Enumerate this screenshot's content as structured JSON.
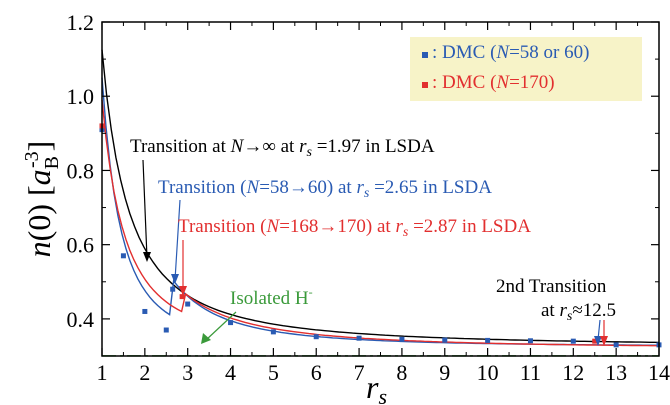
{
  "chart_data": {
    "type": "scatter",
    "xlabel": "r",
    "xlabel_sub": "s",
    "ylabel_main": "n(0)",
    "ylabel_unit_base": "a",
    "ylabel_unit_sub": "B",
    "ylabel_unit_sup": "-3",
    "xlim": [
      1,
      14
    ],
    "ylim": [
      0.3,
      1.2
    ],
    "xticks": [
      1,
      2,
      3,
      4,
      5,
      6,
      7,
      8,
      9,
      10,
      11,
      12,
      13,
      14
    ],
    "yticks": [
      0.4,
      0.6,
      0.8,
      1.0,
      1.2
    ],
    "ytick_labels": [
      "0.4",
      "0.6",
      "0.8",
      "1.0",
      "1.2"
    ],
    "legend": {
      "position": "top-right",
      "background": "#f7f3c8",
      "entries": [
        {
          "text": "DMC (N=58 or 60)",
          "color": "#2a5bb3"
        },
        {
          "text": "DMC (N=170)",
          "color": "#e22f2f"
        }
      ]
    },
    "series": [
      {
        "name": "DMC (N=58 or 60)",
        "color": "#2a5bb3",
        "marker": "square",
        "points": [
          [
            1.0,
            0.91
          ],
          [
            1.5,
            0.57
          ],
          [
            2.0,
            0.42
          ],
          [
            2.5,
            0.37
          ],
          [
            2.65,
            0.48
          ],
          [
            3.0,
            0.44
          ],
          [
            4.0,
            0.39
          ],
          [
            5.0,
            0.365
          ],
          [
            6.0,
            0.352
          ],
          [
            7.0,
            0.348
          ],
          [
            8.0,
            0.345
          ],
          [
            9.0,
            0.343
          ],
          [
            10.0,
            0.342
          ],
          [
            11.0,
            0.341
          ],
          [
            12.0,
            0.34
          ],
          [
            13.0,
            0.33
          ],
          [
            14.0,
            0.33
          ]
        ]
      },
      {
        "name": "DMC (N=170)",
        "color": "#e22f2f",
        "marker": "square",
        "points": [
          [
            1.0,
            0.92
          ],
          [
            2.87,
            0.46
          ],
          [
            12.5,
            0.34
          ]
        ]
      }
    ],
    "isolated_h_level": 0.33,
    "isolated_h_color": "#3a9a3a",
    "curve_colors": {
      "lsda_inf": "#000000",
      "lsda_58_60": "#2a5bb3",
      "lsda_168_170": "#e22f2f"
    },
    "annotations": [
      {
        "text": "Transition at N→∞ at rs =1.97 in LSDA",
        "color": "#000000",
        "x": 1.97
      },
      {
        "text": "Transition (N=58→60) at rs =2.65 in LSDA",
        "color": "#2a5bb3",
        "x": 2.65
      },
      {
        "text": "Transition (N=168→170) at rs =2.87 in LSDA",
        "color": "#e22f2f",
        "x": 2.87
      },
      {
        "text": "Isolated H-",
        "color": "#3a9a3a"
      },
      {
        "text_line1": "2nd Transition",
        "text_line2": "at rs≈12.5",
        "color": "#000000",
        "x": 12.5
      }
    ]
  }
}
